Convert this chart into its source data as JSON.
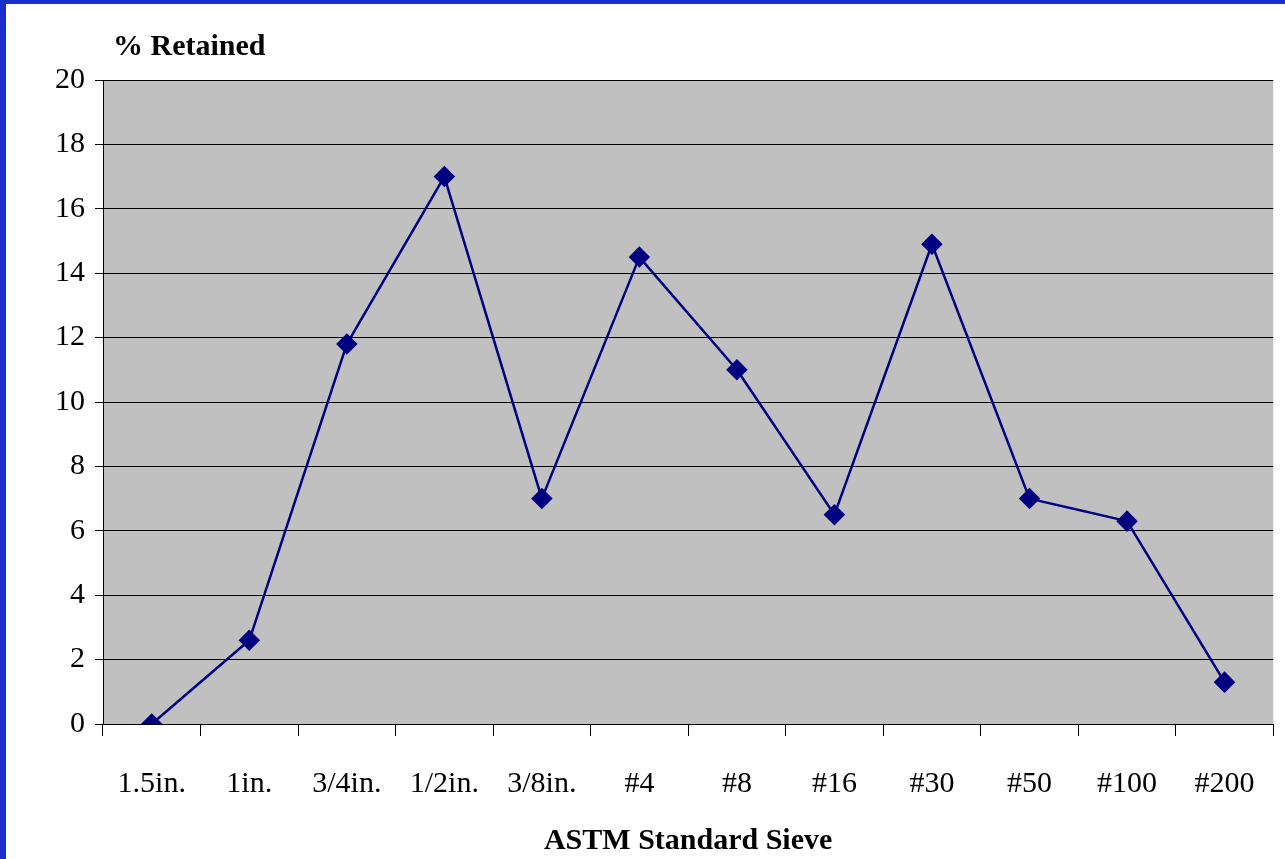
{
  "chart_data": {
    "type": "line",
    "ylabel": "% Retained",
    "xlabel": "ASTM Standard Sieve",
    "categories": [
      "1.5in.",
      "1in.",
      "3/4in.",
      "1/2in.",
      "3/8in.",
      "#4",
      "#8",
      "#16",
      "#30",
      "#50",
      "#100",
      "#200"
    ],
    "series": [
      {
        "color": "#000080",
        "values": [
          0,
          2.6,
          11.8,
          17,
          7,
          14.5,
          11,
          6.5,
          14.9,
          7,
          6.3,
          1.3
        ]
      }
    ],
    "ylim": [
      0,
      20
    ],
    "yticks": [
      0,
      2,
      4,
      6,
      8,
      10,
      12,
      14,
      16,
      18,
      20
    ],
    "grid": "y",
    "legend": false,
    "marker": "diamond",
    "line_style": "solid"
  }
}
